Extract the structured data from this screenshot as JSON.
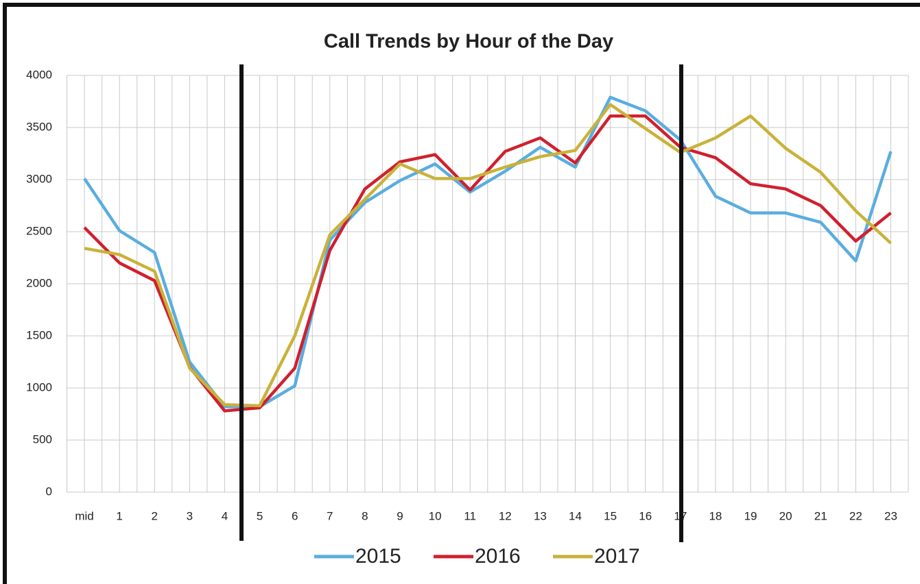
{
  "chart_data": {
    "type": "line",
    "title": "Call Trends by Hour of the Day",
    "categories": [
      "mid",
      "1",
      "2",
      "3",
      "4",
      "5",
      "6",
      "7",
      "8",
      "9",
      "10",
      "11",
      "12",
      "13",
      "14",
      "15",
      "16",
      "17",
      "18",
      "19",
      "20",
      "21",
      "22",
      "23"
    ],
    "series": [
      {
        "name": "2015",
        "color": "#5aade0",
        "values": [
          3010,
          2510,
          2300,
          1250,
          820,
          820,
          1020,
          2420,
          2780,
          2990,
          3150,
          2880,
          3080,
          3310,
          3120,
          3790,
          3660,
          3380,
          2840,
          2680,
          2680,
          2590,
          2220,
          3270
        ]
      },
      {
        "name": "2016",
        "color": "#d0202e",
        "values": [
          2540,
          2200,
          2030,
          1200,
          780,
          810,
          1190,
          2320,
          2910,
          3170,
          3240,
          2900,
          3270,
          3400,
          3160,
          3610,
          3610,
          3310,
          3210,
          2960,
          2910,
          2750,
          2410,
          2680
        ]
      },
      {
        "name": "2017",
        "color": "#c9b23a",
        "values": [
          2340,
          2280,
          2120,
          1190,
          840,
          830,
          1500,
          2470,
          2810,
          3150,
          3010,
          3010,
          3120,
          3220,
          3280,
          3720,
          3490,
          3260,
          3400,
          3610,
          3300,
          3070,
          2700,
          2390
        ]
      }
    ],
    "ylim": [
      0,
      4000
    ],
    "yticks": [
      0,
      500,
      1000,
      1500,
      2000,
      2500,
      3000,
      3500,
      4000
    ],
    "grid": true,
    "legend": "bottom"
  }
}
